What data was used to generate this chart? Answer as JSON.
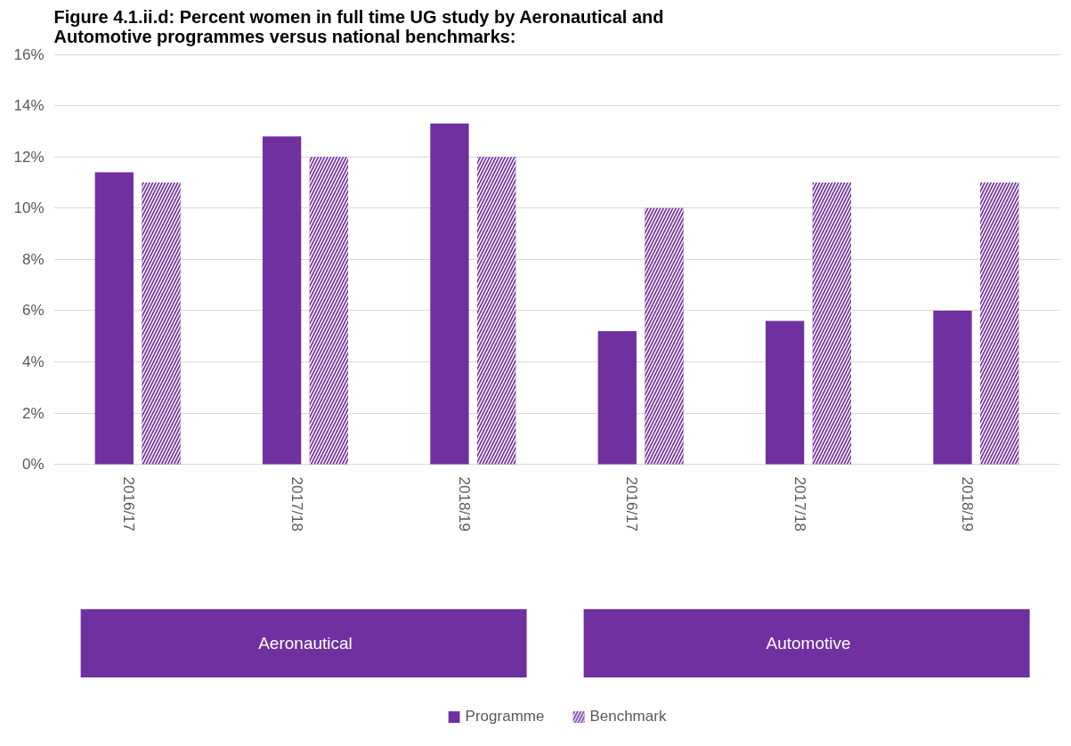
{
  "chart_data": {
    "type": "bar",
    "title": "Figure 4.1.ii.d: Percent women in full time UG study by Aeronautical and\nAutomotive programmes versus national benchmarks:",
    "categories": [
      "2016/17",
      "2017/18",
      "2018/19",
      "2016/17",
      "2017/18",
      "2018/19"
    ],
    "series": [
      {
        "name": "Programme",
        "color": "#7030a0",
        "values": [
          11.4,
          12.8,
          13.3,
          5.2,
          5.6,
          6.0
        ]
      },
      {
        "name": "Benchmark",
        "color": "#7030a0",
        "values": [
          11,
          12,
          12,
          10,
          11,
          11
        ]
      }
    ],
    "ylim": [
      0,
      16
    ],
    "yticks": [
      {
        "value": 0,
        "label": "0%"
      },
      {
        "value": 2,
        "label": "2%"
      },
      {
        "value": 4,
        "label": "4%"
      },
      {
        "value": 6,
        "label": "6%"
      },
      {
        "value": 8,
        "label": "8%"
      },
      {
        "value": 10,
        "label": "10%"
      },
      {
        "value": 12,
        "label": "12%"
      },
      {
        "value": 14,
        "label": "14%"
      },
      {
        "value": 16,
        "label": "16%"
      }
    ],
    "annotations": [
      "Aeronautical",
      "Automotive"
    ],
    "grid": "y",
    "legend": "bottom"
  }
}
